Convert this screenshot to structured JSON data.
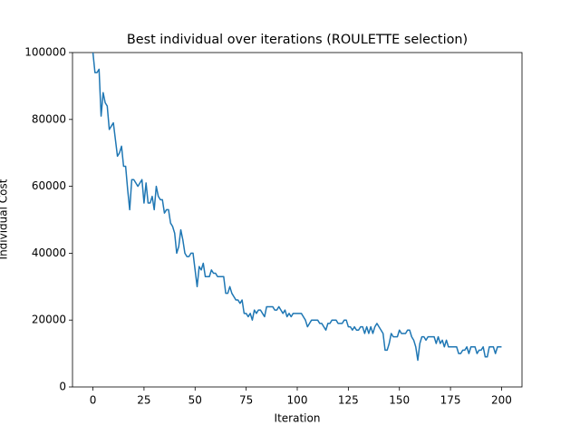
{
  "chart_data": {
    "type": "line",
    "title": "Best individual over iterations (ROULETTE selection)",
    "x_label": "Iteration",
    "y_label": "Individual Cost",
    "xlim": [
      -10,
      210
    ],
    "ylim": [
      0,
      100000
    ],
    "xticks": [
      0,
      25,
      50,
      75,
      100,
      125,
      150,
      175,
      200
    ],
    "yticks": [
      0,
      20000,
      40000,
      60000,
      80000,
      100000
    ],
    "grid": false,
    "series": [
      {
        "name": "Best individual",
        "color": "#1f77b4",
        "x": [
          0,
          1,
          2,
          3,
          4,
          5,
          6,
          7,
          8,
          9,
          10,
          11,
          12,
          13,
          14,
          15,
          16,
          17,
          18,
          19,
          20,
          21,
          22,
          23,
          24,
          25,
          26,
          27,
          28,
          29,
          30,
          31,
          32,
          33,
          34,
          35,
          36,
          37,
          38,
          39,
          40,
          41,
          42,
          43,
          44,
          45,
          46,
          47,
          48,
          49,
          50,
          51,
          52,
          53,
          54,
          55,
          56,
          57,
          58,
          59,
          60,
          61,
          62,
          63,
          64,
          65,
          66,
          67,
          68,
          69,
          70,
          71,
          72,
          73,
          74,
          75,
          76,
          77,
          78,
          79,
          80,
          81,
          82,
          83,
          84,
          85,
          86,
          87,
          88,
          89,
          90,
          91,
          92,
          93,
          94,
          95,
          96,
          97,
          98,
          99,
          100,
          101,
          102,
          103,
          104,
          105,
          106,
          107,
          108,
          109,
          110,
          111,
          112,
          113,
          114,
          115,
          116,
          117,
          118,
          119,
          120,
          121,
          122,
          123,
          124,
          125,
          126,
          127,
          128,
          129,
          130,
          131,
          132,
          133,
          134,
          135,
          136,
          137,
          138,
          139,
          140,
          141,
          142,
          143,
          144,
          145,
          146,
          147,
          148,
          149,
          150,
          151,
          152,
          153,
          154,
          155,
          156,
          157,
          158,
          159,
          160,
          161,
          162,
          163,
          164,
          165,
          166,
          167,
          168,
          169,
          170,
          171,
          172,
          173,
          174,
          175,
          176,
          177,
          178,
          179,
          180,
          181,
          182,
          183,
          184,
          185,
          186,
          187,
          188,
          189,
          190,
          191,
          192,
          193,
          194,
          195,
          196,
          197,
          198,
          199,
          200
        ],
        "values": [
          100000,
          94000,
          94000,
          95000,
          81000,
          88000,
          85000,
          84000,
          77000,
          78000,
          79000,
          74000,
          69000,
          70000,
          72000,
          66000,
          66000,
          59000,
          53000,
          62000,
          62000,
          61000,
          60000,
          61000,
          62000,
          55000,
          61000,
          55000,
          55000,
          57000,
          53000,
          60000,
          57000,
          56000,
          56000,
          52000,
          53000,
          53000,
          49000,
          48000,
          46000,
          40000,
          42000,
          47000,
          44000,
          40000,
          39000,
          39000,
          40000,
          40000,
          35000,
          30000,
          36000,
          35000,
          37000,
          33000,
          33000,
          33000,
          35000,
          34000,
          34000,
          33000,
          33000,
          33000,
          33000,
          28000,
          28000,
          30000,
          28000,
          27000,
          26000,
          26000,
          25000,
          26000,
          22000,
          22000,
          21000,
          22000,
          20000,
          23000,
          22000,
          23000,
          23000,
          22000,
          21000,
          24000,
          24000,
          24000,
          24000,
          23000,
          23000,
          24000,
          23000,
          22000,
          23000,
          21000,
          22000,
          21000,
          22000,
          22000,
          22000,
          22000,
          22000,
          21000,
          20000,
          18000,
          19000,
          20000,
          20000,
          20000,
          20000,
          19000,
          19000,
          18000,
          17000,
          19000,
          19000,
          20000,
          20000,
          20000,
          19000,
          19000,
          19000,
          20000,
          20000,
          18000,
          18000,
          17000,
          18000,
          17000,
          17000,
          18000,
          18000,
          16000,
          18000,
          16000,
          18000,
          16000,
          18000,
          19000,
          18000,
          17000,
          16000,
          11000,
          11000,
          13000,
          16000,
          15000,
          15000,
          15000,
          17000,
          16000,
          16000,
          16000,
          17000,
          17000,
          15000,
          14000,
          12000,
          8000,
          13000,
          15000,
          15000,
          14000,
          15000,
          15000,
          15000,
          15000,
          13000,
          15000,
          13000,
          14000,
          12000,
          14000,
          12000,
          12000,
          12000,
          12000,
          12000,
          10000,
          10000,
          11000,
          11000,
          12000,
          10000,
          12000,
          12000,
          12000,
          10000,
          11000,
          11000,
          12000,
          9000,
          9000,
          12000,
          12000,
          12000,
          10000,
          12000,
          12000,
          12000
        ]
      }
    ]
  }
}
